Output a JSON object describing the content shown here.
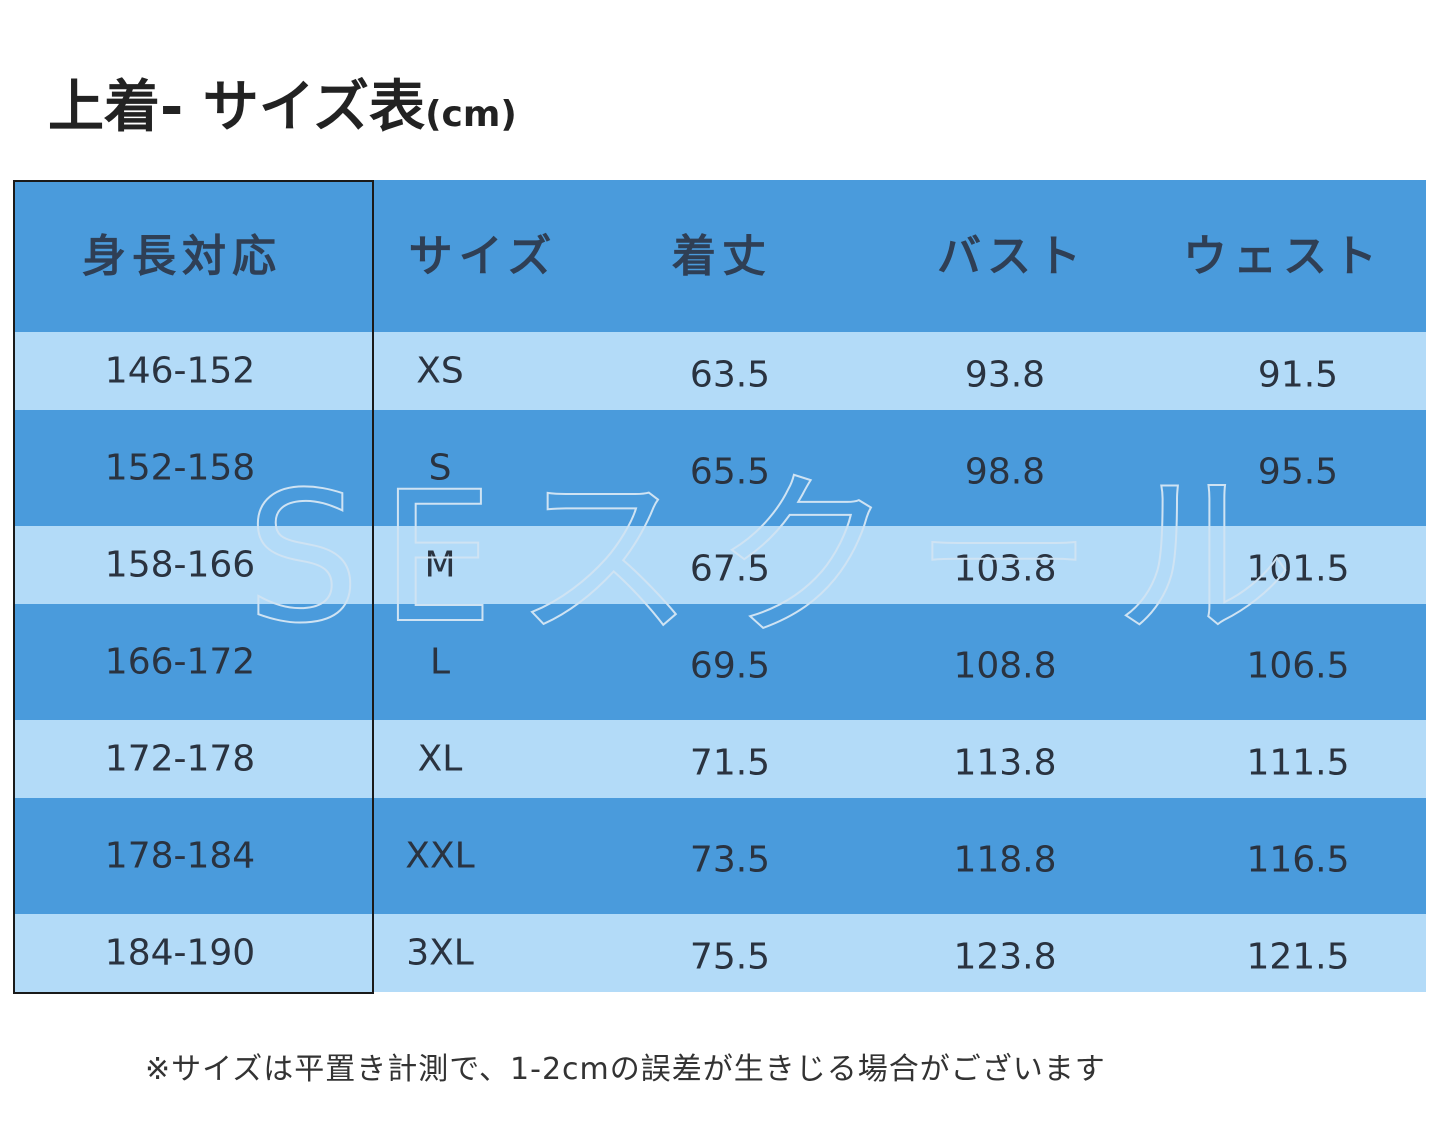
{
  "header": {
    "title": "上着- サイズ表",
    "unit": "(cm)"
  },
  "table": {
    "columns": [
      "身長対応",
      "サイズ",
      "着丈",
      "バスト",
      "ウェスト"
    ],
    "rows": [
      [
        "146-152",
        "XS",
        "63.5",
        "93.8",
        "91.5"
      ],
      [
        "152-158",
        "S",
        "65.5",
        "98.8",
        "95.5"
      ],
      [
        "158-166",
        "M",
        "67.5",
        "103.8",
        "101.5"
      ],
      [
        "166-172",
        "L",
        "69.5",
        "108.8",
        "106.5"
      ],
      [
        "172-178",
        "XL",
        "71.5",
        "113.8",
        "111.5"
      ],
      [
        "178-184",
        "XXL",
        "73.5",
        "118.8",
        "116.5"
      ],
      [
        "184-190",
        "3XL",
        "75.5",
        "123.8",
        "121.5"
      ]
    ]
  },
  "watermark": "SEスクール",
  "footnote": "※サイズは平置き計測で、1-2cmの誤差が生きじる場合がございます"
}
